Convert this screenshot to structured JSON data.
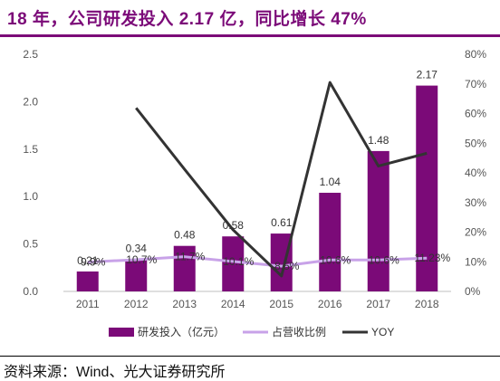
{
  "title": "18 年，公司研发投入 2.17 亿，同比增长 47%",
  "source": "资料来源：Wind、光大证券研究所",
  "colors": {
    "accent": "#7b0a78",
    "bar": "#7b0a78",
    "ratio_line": "#c8a2e8",
    "yoy_line": "#333333"
  },
  "chart_data": {
    "type": "bar",
    "categories": [
      "2011",
      "2012",
      "2013",
      "2014",
      "2015",
      "2016",
      "2017",
      "2018"
    ],
    "ylim": [
      0,
      2.5
    ],
    "yticks": [
      "0.0",
      "0.5",
      "1.0",
      "1.5",
      "2.0",
      "2.5"
    ],
    "y2lim": [
      0,
      80
    ],
    "y2ticks": [
      "0%",
      "10%",
      "20%",
      "30%",
      "40%",
      "50%",
      "60%",
      "70%",
      "80%"
    ],
    "legend_position": "bottom",
    "grid": false,
    "series": [
      {
        "name": "研发投入（亿元）",
        "type": "bar",
        "axis": "left",
        "values": [
          0.21,
          0.34,
          0.48,
          0.58,
          0.61,
          1.04,
          1.48,
          2.17
        ],
        "labels": [
          "0.21",
          "0.34",
          "0.48",
          "0.58",
          "0.61",
          "1.04",
          "1.48",
          "2.17"
        ]
      },
      {
        "name": "占营收比例",
        "type": "line",
        "axis": "right",
        "values": [
          9.9,
          10.7,
          11.7,
          10.1,
          8.5,
          10.6,
          10.6,
          11.23
        ],
        "labels": [
          "9.9%",
          "10.7%",
          "11.7%",
          "10.1%",
          "8.5%",
          "10.6%",
          "10.6%",
          "11.23%"
        ]
      },
      {
        "name": "YOY",
        "type": "line",
        "axis": "right",
        "values": [
          null,
          61.9,
          41.2,
          20.8,
          5.2,
          70.5,
          42.3,
          46.6
        ]
      }
    ]
  }
}
